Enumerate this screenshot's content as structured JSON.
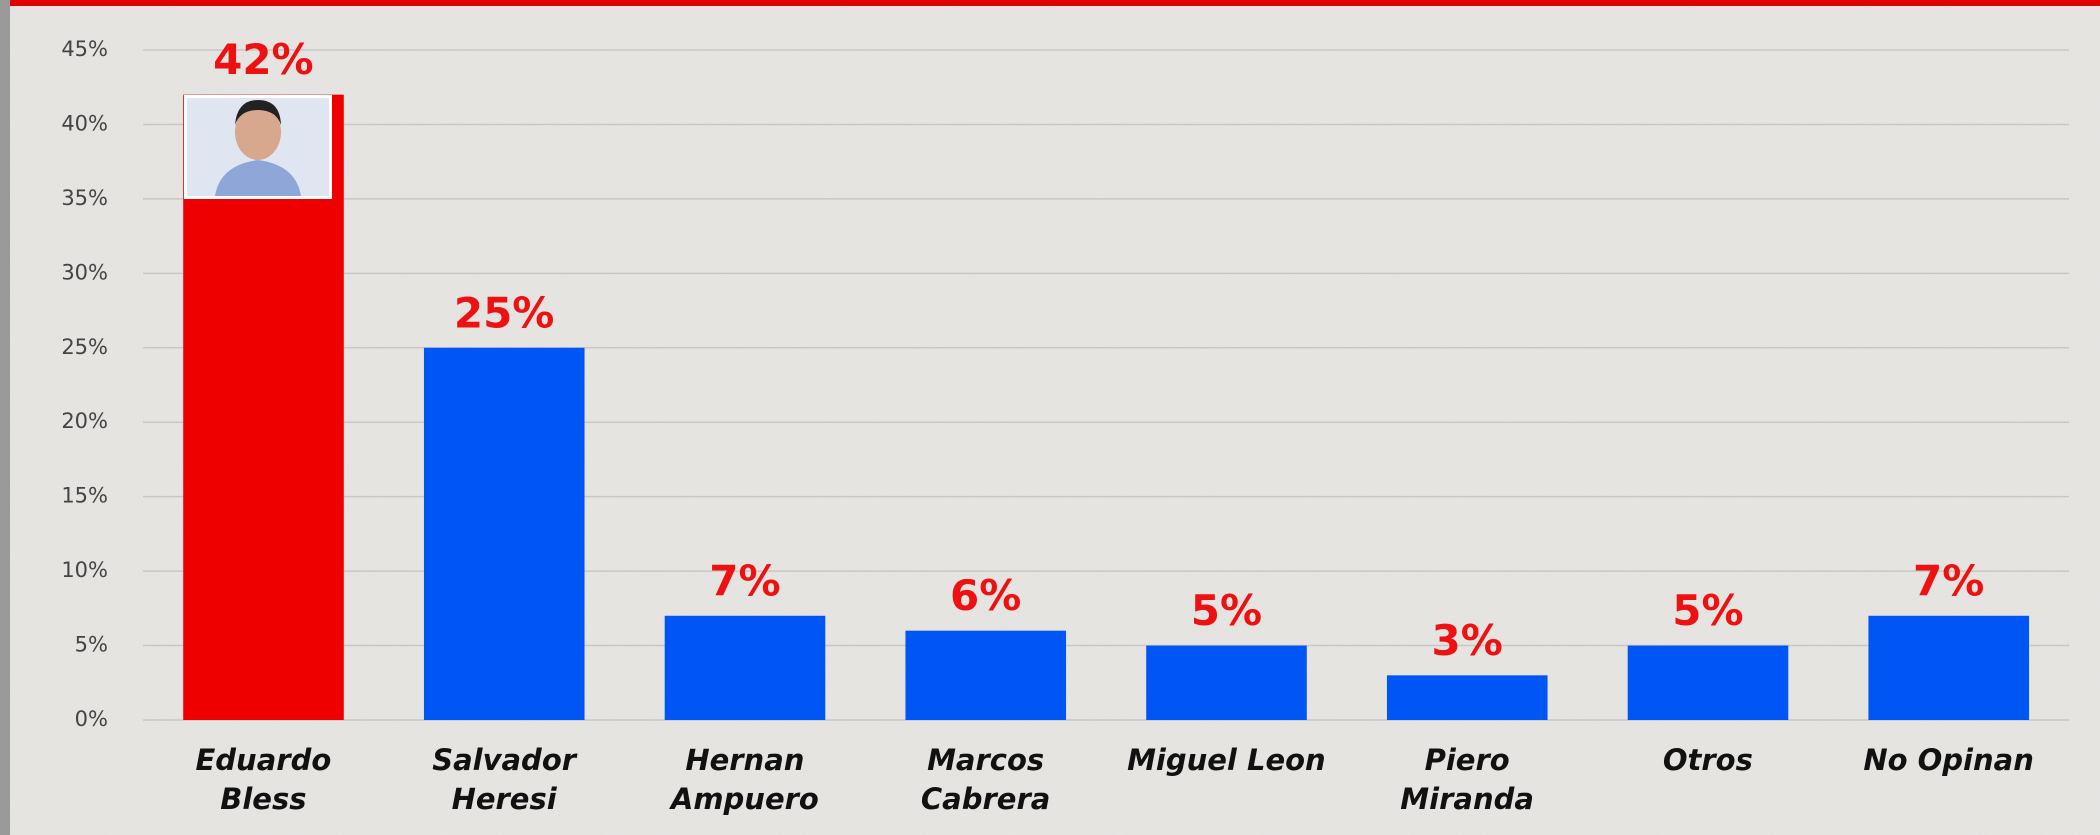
{
  "chart_data": {
    "type": "bar",
    "categories": [
      [
        "Eduardo",
        "Bless"
      ],
      [
        "Salvador",
        "Heresi"
      ],
      [
        "Hernan",
        "Ampuero"
      ],
      [
        "Marcos",
        "Cabrera"
      ],
      [
        "Miguel Leon"
      ],
      [
        "Piero",
        "Miranda"
      ],
      [
        "Otros"
      ],
      [
        "No Opinan"
      ]
    ],
    "values": [
      42,
      25,
      7,
      6,
      5,
      3,
      5,
      7
    ],
    "value_labels": [
      "42%",
      "25%",
      "7%",
      "6%",
      "5%",
      "3%",
      "5%",
      "7%"
    ],
    "colors": [
      "#ee0000",
      "#0055f5",
      "#0055f5",
      "#0055f5",
      "#0055f5",
      "#0055f5",
      "#0055f5",
      "#0055f5"
    ],
    "ylim": [
      0,
      45
    ],
    "yticks": [
      {
        "value": 0,
        "label": "0%"
      },
      {
        "value": 5,
        "label": "5%"
      },
      {
        "value": 10,
        "label": "10%"
      },
      {
        "value": 15,
        "label": "15%"
      },
      {
        "value": 20,
        "label": "20%"
      },
      {
        "value": 25,
        "label": "25%"
      },
      {
        "value": 30,
        "label": "30%"
      },
      {
        "value": 35,
        "label": "35%"
      },
      {
        "value": 40,
        "label": "40%"
      },
      {
        "value": 45,
        "label": "45%"
      }
    ],
    "grid": true
  }
}
